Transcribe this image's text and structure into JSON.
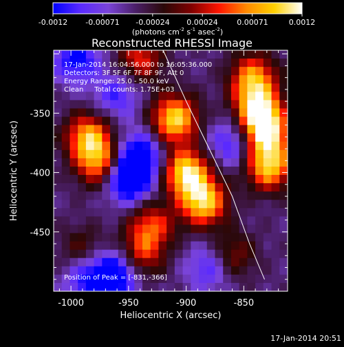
{
  "colorbar": {
    "ticks": [
      "-0.0012",
      "-0.00071",
      "-0.00024",
      "0.00024",
      "0.00071",
      "0.0012"
    ],
    "label_main": "(photons cm",
    "label_exp1": "-2",
    "label_mid1": " s",
    "label_exp2": "-1",
    "label_mid2": " asec",
    "label_exp3": "-2",
    "label_end": ")"
  },
  "title": "Reconstructed RHESSI Image",
  "info": {
    "line1": "17-Jan-2014 16:04:56.000 to 16:05:36.000",
    "line2": "Detectors: 3F 5F 6F 7F 8F 9F, Att 0",
    "line3": "Energy Range: 25.0 - 50.0 keV",
    "line4": "Clean     Total counts: 1.75E+03"
  },
  "peak_text": "Position of Peak = [-831,-366]",
  "axes": {
    "xlabel": "Heliocentric X (arcsec)",
    "ylabel": "Heliocentric Y (arcsec)",
    "xticks": [
      "-1000",
      "-950",
      "-900",
      "-850"
    ],
    "yticks": [
      "-350",
      "-400",
      "-450"
    ]
  },
  "timestamp": "17-Jan-2014 20:51",
  "chart_data": {
    "type": "heatmap",
    "title": "Reconstructed RHESSI Image",
    "xlabel": "Heliocentric X (arcsec)",
    "ylabel": "Heliocentric Y (arcsec)",
    "xlim": [
      -1015,
      -812
    ],
    "ylim": [
      -500,
      -297
    ],
    "xticks": [
      -1000,
      -950,
      -900,
      -850
    ],
    "yticks": [
      -350,
      -400,
      -450
    ],
    "colorbar_range": [
      -0.0012,
      0.0012
    ],
    "colorbar_units": "photons cm^-2 s^-1 asec^-2",
    "colormap": [
      "#0000ff",
      "#5a2aff",
      "#7a44d8",
      "#4a1e66",
      "#2a0808",
      "#800000",
      "#ff1500",
      "#ff8a00",
      "#ffd000",
      "#ffffff"
    ],
    "peak_position": [
      -831,
      -366
    ],
    "limb": [
      [
        -920,
        -297
      ],
      [
        -900,
        -340
      ],
      [
        -880,
        -380
      ],
      [
        -860,
        -420
      ],
      [
        -845,
        -460
      ],
      [
        -832,
        -490
      ]
    ],
    "blobs": [
      {
        "x": -985,
        "y": -370,
        "level": 0.8
      },
      {
        "x": -975,
        "y": -392,
        "level": 0.75
      },
      {
        "x": -910,
        "y": -355,
        "level": 0.98
      },
      {
        "x": -900,
        "y": -400,
        "level": 1.0
      },
      {
        "x": -885,
        "y": -425,
        "level": 0.95
      },
      {
        "x": -930,
        "y": -445,
        "level": 0.6
      },
      {
        "x": -838,
        "y": -345,
        "level": 0.85
      },
      {
        "x": -831,
        "y": -366,
        "level": 1.0
      },
      {
        "x": -828,
        "y": -395,
        "level": 0.9
      },
      {
        "x": -842,
        "y": -320,
        "level": 0.75
      },
      {
        "x": -940,
        "y": -305,
        "level": 0.55
      },
      {
        "x": -940,
        "y": -470,
        "level": 0.55
      },
      {
        "x": -990,
        "y": -465,
        "level": 0.3
      },
      {
        "x": -860,
        "y": -470,
        "level": 0.4
      }
    ],
    "dips": [
      {
        "x": -950,
        "y": -405,
        "level": 0.85
      },
      {
        "x": -940,
        "y": -385,
        "level": 0.6
      },
      {
        "x": -960,
        "y": -485,
        "level": 0.7
      },
      {
        "x": -985,
        "y": -490,
        "level": 0.5
      },
      {
        "x": -995,
        "y": -305,
        "level": 0.55
      },
      {
        "x": -880,
        "y": -480,
        "level": 0.4
      },
      {
        "x": -960,
        "y": -335,
        "level": 0.4
      },
      {
        "x": -860,
        "y": -375,
        "level": 0.45
      }
    ]
  }
}
